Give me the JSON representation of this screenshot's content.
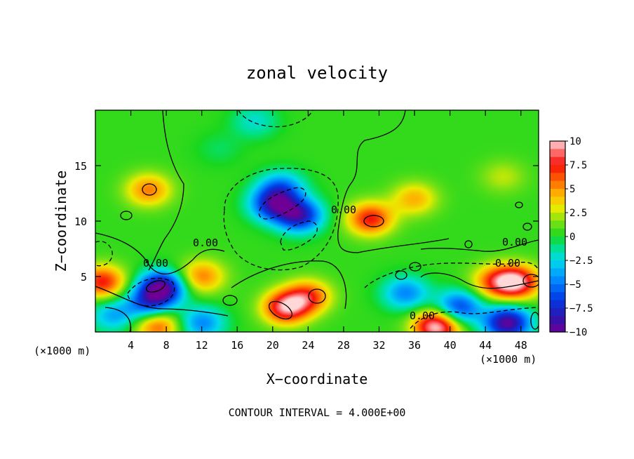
{
  "chart_data": {
    "type": "heatmap",
    "title": "zonal velocity",
    "xlabel": "X−coordinate",
    "ylabel": "Z−coordinate",
    "x_unit": "(×1000 m)",
    "xlim": [
      0,
      50
    ],
    "ylim": [
      0,
      20
    ],
    "x_ticks": [
      "4",
      "8",
      "12",
      "16",
      "20",
      "24",
      "28",
      "32",
      "36",
      "40",
      "44",
      "48"
    ],
    "x_tick_values": [
      4,
      8,
      12,
      16,
      20,
      24,
      28,
      32,
      36,
      40,
      44,
      48
    ],
    "y_ticks": [
      "5",
      "10",
      "15"
    ],
    "y_tick_values": [
      5,
      10,
      15
    ],
    "colorbar": {
      "labels": [
        "10",
        "7.5",
        "5",
        "2.5",
        "0",
        "−2.5",
        "−5",
        "−7.5",
        "−10"
      ],
      "values": [
        10,
        7.5,
        5,
        2.5,
        0,
        -2.5,
        -5,
        -7.5,
        -10
      ],
      "range": [
        -10,
        10
      ],
      "colormap": "rainbow (violet → blue → cyan → green → yellow → orange → red → pink)"
    },
    "contour_interval": 4.0,
    "contour_labels": [
      "0.00",
      "0.00",
      "0.00",
      "0.00",
      "0.00",
      "0.00"
    ],
    "contour_label_values": [
      0,
      0,
      0,
      0,
      0,
      0
    ],
    "footer": "CONTOUR INTERVAL = 4.000E+00",
    "features": [
      {
        "x": 23,
        "z": 10.5,
        "value": -8.5
      },
      {
        "x": 20,
        "z": 11.5,
        "value": -7.5
      },
      {
        "x": 21,
        "z": 13,
        "value": -5
      },
      {
        "x": 31,
        "z": 10.2,
        "value": 7
      },
      {
        "x": 36,
        "z": 12,
        "value": 4
      },
      {
        "x": 21.5,
        "z": 2.2,
        "value": 8.5
      },
      {
        "x": 24,
        "z": 3.2,
        "value": 6
      },
      {
        "x": 0.8,
        "z": 4.5,
        "value": 7
      },
      {
        "x": 7.5,
        "z": 4,
        "value": -10
      },
      {
        "x": 6,
        "z": 2.5,
        "value": -6
      },
      {
        "x": 12,
        "z": 5,
        "value": 5
      },
      {
        "x": 47.5,
        "z": 4.5,
        "value": 9
      },
      {
        "x": 45,
        "z": 4.5,
        "value": 5
      },
      {
        "x": 38.5,
        "z": 0.5,
        "value": 10
      },
      {
        "x": 46.5,
        "z": 0.8,
        "value": -10
      },
      {
        "x": 41,
        "z": 2.2,
        "value": -7
      },
      {
        "x": 35,
        "z": 3.5,
        "value": -5
      },
      {
        "x": 7,
        "z": 0.6,
        "value": 6
      },
      {
        "x": 2,
        "z": 1.5,
        "value": -4
      },
      {
        "x": 12,
        "z": 0.8,
        "value": -5
      },
      {
        "x": 6,
        "z": 12.8,
        "value": 5
      },
      {
        "x": 14,
        "z": 16.5,
        "value": -1
      },
      {
        "x": 18,
        "z": 19,
        "value": -2.5
      },
      {
        "x": 46,
        "z": 14,
        "value": 2
      }
    ]
  }
}
